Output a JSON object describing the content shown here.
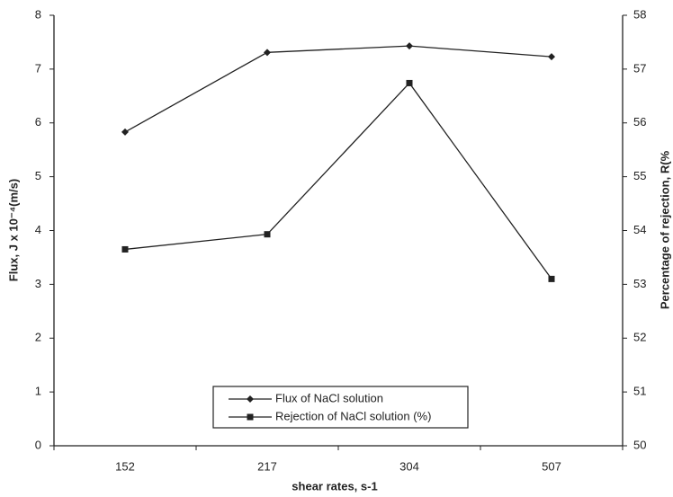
{
  "chart_data": {
    "type": "line",
    "categories": [
      "152",
      "217",
      "304",
      "507"
    ],
    "xlabel": "shear rates, s-1",
    "ylabel": "Flux, J x 10⁻⁴(m/s)",
    "y2label": "Percentage of rejection, R(%",
    "ylim": [
      0,
      8
    ],
    "yticks": [
      0,
      1,
      2,
      3,
      4,
      5,
      6,
      7,
      8
    ],
    "y2lim": [
      50,
      58
    ],
    "y2ticks": [
      50,
      51,
      52,
      53,
      54,
      55,
      56,
      57,
      58
    ],
    "series": [
      {
        "name": "Flux of NaCl solution",
        "color": "#222222",
        "marker": "diamond",
        "values": [
          5.83,
          7.31,
          7.43,
          7.23
        ]
      },
      {
        "name": "Rejection of NaCl solution (%)",
        "color": "#222222",
        "marker": "square",
        "axis": "y2",
        "values": [
          53.65,
          53.93,
          56.74,
          53.1
        ]
      }
    ]
  }
}
